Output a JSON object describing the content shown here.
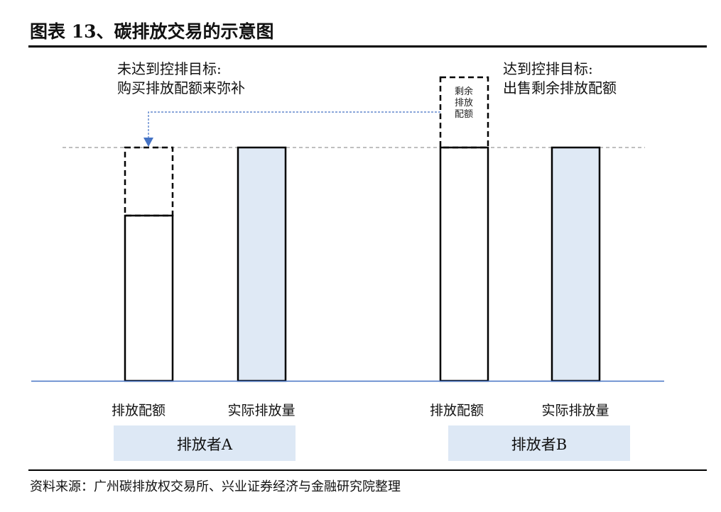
{
  "title": "图表 13、碳排放交易的示意图",
  "annotations": {
    "left_line1": "未达到控排目标:",
    "left_line2": "购买排放配额来弥补",
    "right_line1": "达到控排目标:",
    "right_line2": "出售剩余排放配额"
  },
  "surplus_box": {
    "line1": "剩余",
    "line2": "排放",
    "line3": "配额"
  },
  "bar_labels": {
    "a_allowance": "排放配额",
    "a_actual": "实际排放量",
    "b_allowance": "排放配额",
    "b_actual": "实际排放量"
  },
  "groups": {
    "a": "排放者A",
    "b": "排放者B"
  },
  "source": "资料来源：广州碳排放权交易所、兴业证券经济与金融研究院整理",
  "colors": {
    "bar_fill": "#dfe9f5",
    "group_fill": "#dde8f5",
    "baseline": "#4472c4",
    "arrow": "#4472c4"
  }
}
